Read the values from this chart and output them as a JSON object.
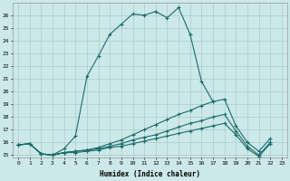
{
  "xlabel": "Humidex (Indice chaleur)",
  "bg_color": "#cce8e8",
  "grid_color": "#aacccc",
  "line_color": "#1a6b6b",
  "xlim": [
    -0.5,
    23.5
  ],
  "ylim": [
    14.8,
    27.0
  ],
  "xticks": [
    0,
    1,
    2,
    3,
    4,
    5,
    6,
    7,
    8,
    9,
    10,
    11,
    12,
    13,
    14,
    15,
    16,
    17,
    18,
    19,
    20,
    21,
    22,
    23
  ],
  "yticks": [
    15,
    16,
    17,
    18,
    19,
    20,
    21,
    22,
    23,
    24,
    25,
    26
  ],
  "series": {
    "main": {
      "x": [
        0,
        1,
        2,
        3,
        4,
        5,
        6,
        7,
        8,
        9,
        10,
        11,
        12,
        13,
        14,
        15,
        16,
        17
      ],
      "y": [
        15.8,
        15.9,
        15.1,
        15.0,
        15.5,
        16.5,
        21.2,
        22.8,
        24.5,
        25.3,
        26.1,
        26.0,
        26.3,
        25.8,
        26.6,
        24.5,
        20.8,
        19.2
      ]
    },
    "line2": {
      "x": [
        0,
        1,
        2,
        3,
        4,
        5,
        6,
        7,
        8,
        9,
        10,
        11,
        12,
        13,
        14,
        15,
        16,
        17,
        18,
        19,
        20,
        21,
        22
      ],
      "y": [
        15.8,
        15.9,
        15.1,
        15.0,
        15.2,
        15.3,
        15.4,
        15.6,
        15.9,
        16.2,
        16.6,
        17.0,
        17.4,
        17.8,
        18.2,
        18.5,
        18.9,
        19.2,
        19.4,
        17.3,
        16.0,
        15.3,
        16.3
      ]
    },
    "line3": {
      "x": [
        0,
        1,
        2,
        3,
        4,
        5,
        6,
        7,
        8,
        9,
        10,
        11,
        12,
        13,
        14,
        15,
        16,
        17,
        18,
        19,
        20,
        21,
        22
      ],
      "y": [
        15.8,
        15.9,
        15.1,
        15.0,
        15.2,
        15.3,
        15.4,
        15.5,
        15.7,
        15.9,
        16.2,
        16.4,
        16.6,
        16.9,
        17.2,
        17.5,
        17.7,
        18.0,
        18.2,
        16.9,
        15.7,
        15.0,
        16.0
      ]
    },
    "line4": {
      "x": [
        0,
        1,
        2,
        3,
        4,
        5,
        6,
        7,
        8,
        9,
        10,
        11,
        12,
        13,
        14,
        15,
        16,
        17,
        18,
        19,
        20,
        21,
        22
      ],
      "y": [
        15.8,
        15.9,
        15.1,
        15.0,
        15.2,
        15.2,
        15.3,
        15.4,
        15.6,
        15.7,
        15.9,
        16.1,
        16.3,
        16.5,
        16.7,
        16.9,
        17.1,
        17.3,
        17.5,
        16.6,
        15.5,
        14.9,
        15.9
      ]
    }
  }
}
